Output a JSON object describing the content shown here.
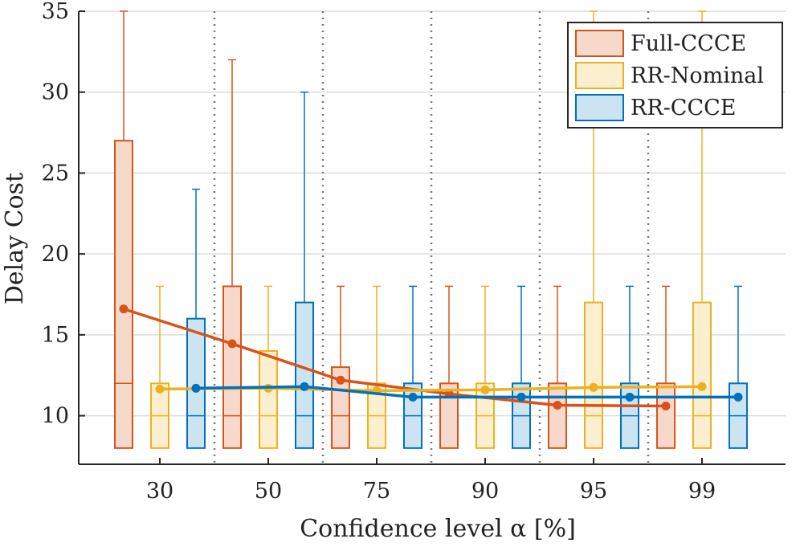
{
  "chart_data": {
    "type": "box",
    "title": "",
    "xlabel": "Confidence level α [%]",
    "ylabel": "Delay Cost",
    "categories": [
      "30",
      "50",
      "75",
      "90",
      "95",
      "99"
    ],
    "ylim": [
      7,
      35
    ],
    "yticks": [
      10,
      15,
      20,
      25,
      30,
      35
    ],
    "grid": "horizontal",
    "legend_position": "top-right",
    "series": [
      {
        "name": "Full-CCCE",
        "color": "#d95319",
        "fill": "#f7d9cc",
        "boxes": [
          {
            "min": 8,
            "q1": 8,
            "median": 12,
            "q3": 27,
            "max": 35
          },
          {
            "min": 8,
            "q1": 8,
            "median": 10,
            "q3": 18,
            "max": 32
          },
          {
            "min": 8,
            "q1": 8,
            "median": 10,
            "q3": 13,
            "max": 18
          },
          {
            "min": 8,
            "q1": 8,
            "median": 8,
            "q3": 12,
            "max": 18
          },
          {
            "min": 8,
            "q1": 8,
            "median": 8,
            "q3": 12,
            "max": 18
          },
          {
            "min": 8,
            "q1": 8,
            "median": 8,
            "q3": 12,
            "max": 18
          }
        ],
        "means": [
          16.6,
          14.45,
          12.2,
          11.35,
          10.65,
          10.6
        ]
      },
      {
        "name": "RR-Nominal",
        "color": "#edb120",
        "fill": "#fbefcf",
        "boxes": [
          {
            "min": 8,
            "q1": 8,
            "median": 10,
            "q3": 12,
            "max": 18
          },
          {
            "min": 8,
            "q1": 8,
            "median": 10,
            "q3": 14,
            "max": 18
          },
          {
            "min": 8,
            "q1": 8,
            "median": 10,
            "q3": 12,
            "max": 18
          },
          {
            "min": 8,
            "q1": 8,
            "median": 10,
            "q3": 12,
            "max": 18
          },
          {
            "min": 8,
            "q1": 8,
            "median": 10,
            "q3": 17,
            "max": 35
          },
          {
            "min": 8,
            "q1": 8,
            "median": 10,
            "q3": 17,
            "max": 35
          }
        ],
        "means": [
          11.65,
          11.7,
          11.55,
          11.6,
          11.75,
          11.8
        ]
      },
      {
        "name": "RR-CCCE",
        "color": "#0072bd",
        "fill": "#cce3f1",
        "boxes": [
          {
            "min": 8,
            "q1": 8,
            "median": 10,
            "q3": 16,
            "max": 24
          },
          {
            "min": 8,
            "q1": 8,
            "median": 10,
            "q3": 17,
            "max": 30
          },
          {
            "min": 8,
            "q1": 8,
            "median": 10,
            "q3": 12,
            "max": 18
          },
          {
            "min": 8,
            "q1": 8,
            "median": 10,
            "q3": 12,
            "max": 18
          },
          {
            "min": 8,
            "q1": 8,
            "median": 10,
            "q3": 12,
            "max": 18
          },
          {
            "min": 8,
            "q1": 8,
            "median": 10,
            "q3": 12,
            "max": 18
          }
        ],
        "means": [
          11.7,
          11.8,
          11.15,
          11.15,
          11.15,
          11.15
        ]
      }
    ]
  }
}
